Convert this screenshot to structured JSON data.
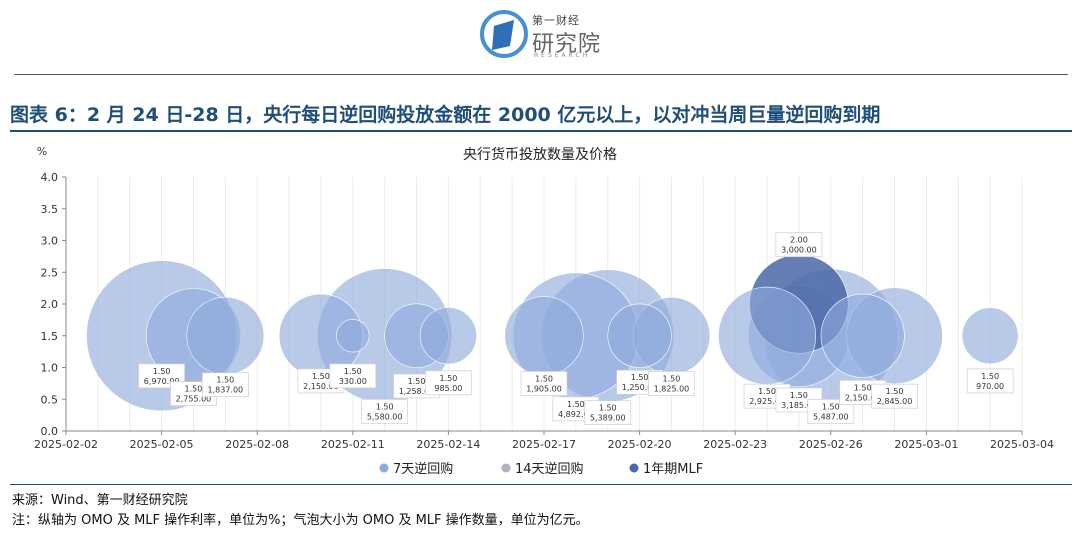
{
  "logo": {
    "top": "第一财经",
    "main": "研究院",
    "sub": "RESEARCH"
  },
  "headline": "图表 6：2 月 24 日-28 日，央行每日逆回购投放金额在 2000 亿元以上，以对冲当周巨量逆回购到期",
  "chart_data": {
    "type": "bubble",
    "title": "央行货币投放数量及价格",
    "ylabel": "%",
    "ylim": [
      0,
      4
    ],
    "yticks": [
      "0.0",
      "0.5",
      "1.0",
      "1.5",
      "2.0",
      "2.5",
      "3.0",
      "3.5",
      "4.0"
    ],
    "xlim": [
      "2025-02-02",
      "2025-03-04"
    ],
    "xticks": [
      "2025-02-02",
      "2025-02-05",
      "2025-02-08",
      "2025-02-11",
      "2025-02-14",
      "2025-02-17",
      "2025-02-20",
      "2025-02-23",
      "2025-02-26",
      "2025-03-01",
      "2025-03-04"
    ],
    "grid": "vertical",
    "legend_position": "bottom",
    "series": [
      {
        "name": "7天逆回购",
        "color": "#8ea9db",
        "points": [
          {
            "date": "2025-02-05",
            "rate": 1.5,
            "amount": 6970,
            "label": "1.50\n6,970.00"
          },
          {
            "date": "2025-02-06",
            "rate": 1.5,
            "amount": 2755,
            "label": "1.50\n2,755.00"
          },
          {
            "date": "2025-02-07",
            "rate": 1.5,
            "amount": 1837,
            "label": "1.50\n1,837.00"
          },
          {
            "date": "2025-02-10",
            "rate": 1.5,
            "amount": 2150,
            "label": "1.50\n2,150.00"
          },
          {
            "date": "2025-02-11",
            "rate": 1.5,
            "amount": 330,
            "label": "1.50\n330.00"
          },
          {
            "date": "2025-02-12",
            "rate": 1.5,
            "amount": 5580,
            "label": "1.50\n5,580.00"
          },
          {
            "date": "2025-02-13",
            "rate": 1.5,
            "amount": 1258,
            "label": "1.50\n1,258.00"
          },
          {
            "date": "2025-02-14",
            "rate": 1.5,
            "amount": 985,
            "label": "1.50\n985.00"
          },
          {
            "date": "2025-02-17",
            "rate": 1.5,
            "amount": 1905,
            "label": "1.50\n1,905.00"
          },
          {
            "date": "2025-02-18",
            "rate": 1.5,
            "amount": 4892,
            "label": "1.50\n4,892.00"
          },
          {
            "date": "2025-02-19",
            "rate": 1.5,
            "amount": 5389,
            "label": "1.50\n5,389.00"
          },
          {
            "date": "2025-02-20",
            "rate": 1.5,
            "amount": 1250,
            "label": "1.50\n1,250.00"
          },
          {
            "date": "2025-02-21",
            "rate": 1.5,
            "amount": 1825,
            "label": "1.50\n1,825.00"
          },
          {
            "date": "2025-02-24",
            "rate": 1.5,
            "amount": 2925,
            "label": "1.50\n2,925.00"
          },
          {
            "date": "2025-02-25",
            "rate": 1.5,
            "amount": 3185,
            "label": "1.50\n3,185.00"
          },
          {
            "date": "2025-02-26",
            "rate": 1.5,
            "amount": 5487,
            "label": "1.50\n5,487.00"
          },
          {
            "date": "2025-02-27",
            "rate": 1.5,
            "amount": 2150,
            "label": "1.50\n2,150.00"
          },
          {
            "date": "2025-02-28",
            "rate": 1.5,
            "amount": 2845,
            "label": "1.50\n2,845.00"
          },
          {
            "date": "2025-03-03",
            "rate": 1.5,
            "amount": 970,
            "label": "1.50\n970.00"
          }
        ]
      },
      {
        "name": "14天逆回购",
        "color": "#aeb4bf",
        "points": []
      },
      {
        "name": "1年期MLF",
        "color": "#4a69a8",
        "points": [
          {
            "date": "2025-02-25",
            "rate": 2.0,
            "amount": 3000,
            "label": "2.00\n3,000.00"
          }
        ]
      }
    ]
  },
  "source": "来源：Wind、第一财经研究院",
  "note": "注：纵轴为 OMO 及 MLF 操作利率，单位为%；气泡大小为 OMO 及 MLF 操作数量，单位为亿元。"
}
